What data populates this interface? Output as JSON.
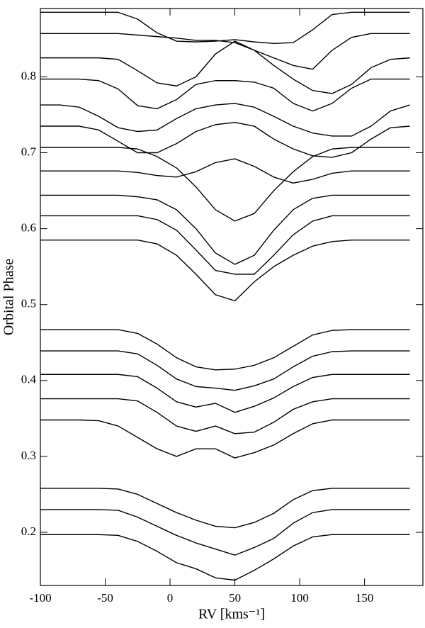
{
  "chart_data": {
    "type": "line",
    "x_label": "RV [kms⁻¹]",
    "y_label": "Orbital Phase",
    "color": "#000000",
    "xlim": [
      -100,
      195
    ],
    "ylim": [
      0.13,
      0.89
    ],
    "xticks": [
      -100,
      -50,
      0,
      50,
      100,
      150
    ],
    "yticks": [
      0.2,
      0.3,
      0.4,
      0.5,
      0.6,
      0.7,
      0.8
    ],
    "x": [
      -100,
      -85,
      -70,
      -55,
      -40,
      -25,
      -10,
      5,
      20,
      35,
      50,
      65,
      80,
      95,
      110,
      125,
      140,
      155,
      170,
      185
    ],
    "series": [
      {
        "values": [
          0.885,
          0.885,
          0.885,
          0.885,
          0.885,
          0.876,
          0.858,
          0.847,
          0.846,
          0.847,
          0.849,
          0.846,
          0.844,
          0.845,
          0.862,
          0.882,
          0.885,
          0.885,
          0.885,
          0.885
        ]
      },
      {
        "values": [
          0.857,
          0.857,
          0.857,
          0.857,
          0.857,
          0.855,
          0.853,
          0.851,
          0.848,
          0.848,
          0.845,
          0.835,
          0.825,
          0.815,
          0.81,
          0.835,
          0.852,
          0.857,
          0.857,
          0.857
        ]
      },
      {
        "values": [
          0.825,
          0.825,
          0.825,
          0.825,
          0.823,
          0.808,
          0.792,
          0.788,
          0.8,
          0.83,
          0.847,
          0.835,
          0.815,
          0.797,
          0.782,
          0.778,
          0.79,
          0.812,
          0.823,
          0.825
        ]
      },
      {
        "values": [
          0.797,
          0.797,
          0.797,
          0.795,
          0.784,
          0.762,
          0.758,
          0.77,
          0.79,
          0.795,
          0.795,
          0.793,
          0.785,
          0.765,
          0.755,
          0.765,
          0.785,
          0.797,
          0.797,
          0.797
        ]
      },
      {
        "values": [
          0.763,
          0.763,
          0.76,
          0.748,
          0.733,
          0.728,
          0.73,
          0.745,
          0.758,
          0.763,
          0.765,
          0.76,
          0.748,
          0.735,
          0.726,
          0.722,
          0.722,
          0.735,
          0.755,
          0.763
        ]
      },
      {
        "values": [
          0.735,
          0.735,
          0.735,
          0.73,
          0.715,
          0.7,
          0.7,
          0.712,
          0.728,
          0.737,
          0.74,
          0.735,
          0.718,
          0.705,
          0.696,
          0.694,
          0.7,
          0.718,
          0.733,
          0.735
        ]
      },
      {
        "values": [
          0.707,
          0.707,
          0.707,
          0.707,
          0.707,
          0.705,
          0.695,
          0.68,
          0.655,
          0.625,
          0.61,
          0.62,
          0.65,
          0.675,
          0.695,
          0.705,
          0.707,
          0.707,
          0.707,
          0.707
        ]
      },
      {
        "values": [
          0.676,
          0.676,
          0.676,
          0.676,
          0.676,
          0.674,
          0.67,
          0.668,
          0.675,
          0.687,
          0.692,
          0.682,
          0.668,
          0.66,
          0.665,
          0.673,
          0.676,
          0.676,
          0.676,
          0.676
        ]
      },
      {
        "values": [
          0.644,
          0.644,
          0.644,
          0.644,
          0.644,
          0.642,
          0.638,
          0.625,
          0.6,
          0.568,
          0.553,
          0.565,
          0.598,
          0.625,
          0.64,
          0.644,
          0.644,
          0.644,
          0.644,
          0.644
        ]
      },
      {
        "values": [
          0.617,
          0.617,
          0.617,
          0.617,
          0.617,
          0.617,
          0.612,
          0.598,
          0.572,
          0.545,
          0.54,
          0.54,
          0.565,
          0.592,
          0.61,
          0.617,
          0.617,
          0.617,
          0.617,
          0.617
        ]
      },
      {
        "values": [
          0.585,
          0.585,
          0.585,
          0.585,
          0.585,
          0.585,
          0.58,
          0.565,
          0.54,
          0.513,
          0.505,
          0.53,
          0.55,
          0.565,
          0.577,
          0.583,
          0.585,
          0.585,
          0.585,
          0.585
        ]
      },
      {
        "values": [
          0.467,
          0.467,
          0.467,
          0.467,
          0.467,
          0.462,
          0.448,
          0.43,
          0.418,
          0.414,
          0.415,
          0.42,
          0.43,
          0.445,
          0.46,
          0.466,
          0.467,
          0.467,
          0.467,
          0.467
        ]
      },
      {
        "values": [
          0.439,
          0.439,
          0.439,
          0.439,
          0.439,
          0.435,
          0.42,
          0.402,
          0.392,
          0.39,
          0.387,
          0.393,
          0.402,
          0.418,
          0.432,
          0.438,
          0.439,
          0.439,
          0.439,
          0.439
        ]
      },
      {
        "values": [
          0.408,
          0.408,
          0.408,
          0.408,
          0.408,
          0.405,
          0.39,
          0.372,
          0.365,
          0.37,
          0.358,
          0.366,
          0.377,
          0.392,
          0.404,
          0.408,
          0.408,
          0.408,
          0.408,
          0.408
        ]
      },
      {
        "values": [
          0.376,
          0.376,
          0.376,
          0.376,
          0.376,
          0.373,
          0.358,
          0.34,
          0.333,
          0.34,
          0.33,
          0.332,
          0.345,
          0.362,
          0.372,
          0.376,
          0.376,
          0.376,
          0.376,
          0.376
        ]
      },
      {
        "values": [
          0.348,
          0.348,
          0.348,
          0.347,
          0.34,
          0.325,
          0.31,
          0.3,
          0.31,
          0.31,
          0.298,
          0.305,
          0.315,
          0.33,
          0.343,
          0.348,
          0.348,
          0.348,
          0.348,
          0.348
        ]
      },
      {
        "values": [
          0.258,
          0.258,
          0.258,
          0.258,
          0.257,
          0.25,
          0.238,
          0.226,
          0.216,
          0.208,
          0.206,
          0.213,
          0.225,
          0.243,
          0.255,
          0.258,
          0.258,
          0.258,
          0.258,
          0.258
        ]
      },
      {
        "values": [
          0.23,
          0.23,
          0.23,
          0.23,
          0.229,
          0.22,
          0.208,
          0.196,
          0.186,
          0.178,
          0.17,
          0.18,
          0.192,
          0.212,
          0.226,
          0.23,
          0.23,
          0.23,
          0.23,
          0.23
        ]
      },
      {
        "values": [
          0.197,
          0.197,
          0.197,
          0.197,
          0.196,
          0.188,
          0.175,
          0.16,
          0.152,
          0.14,
          0.137,
          0.15,
          0.165,
          0.182,
          0.194,
          0.197,
          0.197,
          0.197,
          0.197,
          0.197
        ]
      }
    ]
  }
}
